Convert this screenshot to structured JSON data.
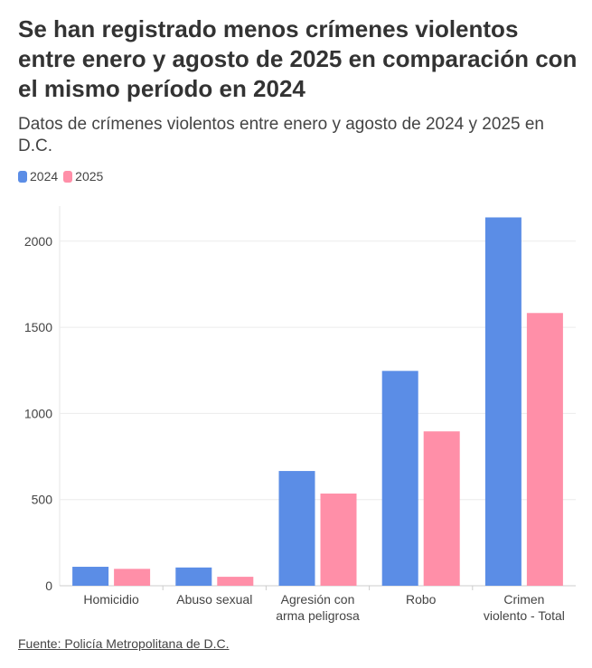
{
  "title": "Se han registrado menos crímenes violentos entre enero y agosto de 2025 en comparación con el mismo período en 2024",
  "subtitle": "Datos de crímenes violentos entre enero y agosto de 2024 y 2025 en D.C.",
  "source": "Fuente: Policía Metropolitana de D.C.",
  "chart_data": {
    "type": "bar",
    "categories": [
      [
        "Homicidio"
      ],
      [
        "Abuso sexual"
      ],
      [
        "Agresión con",
        "arma peligrosa"
      ],
      [
        "Robo"
      ],
      [
        "Crimen",
        "violento - Total"
      ]
    ],
    "series": [
      {
        "name": "2024",
        "color": "#5b8de6",
        "values": [
          110,
          106,
          666,
          1247,
          2138
        ]
      },
      {
        "name": "2025",
        "color": "#ff8fa8",
        "values": [
          98,
          52,
          535,
          896,
          1583
        ]
      }
    ],
    "ylim": [
      0,
      2200
    ],
    "yticks": [
      0,
      500,
      1000,
      1500,
      2000
    ],
    "grid": true,
    "legend": "top-left",
    "xlabel": "",
    "ylabel": ""
  }
}
